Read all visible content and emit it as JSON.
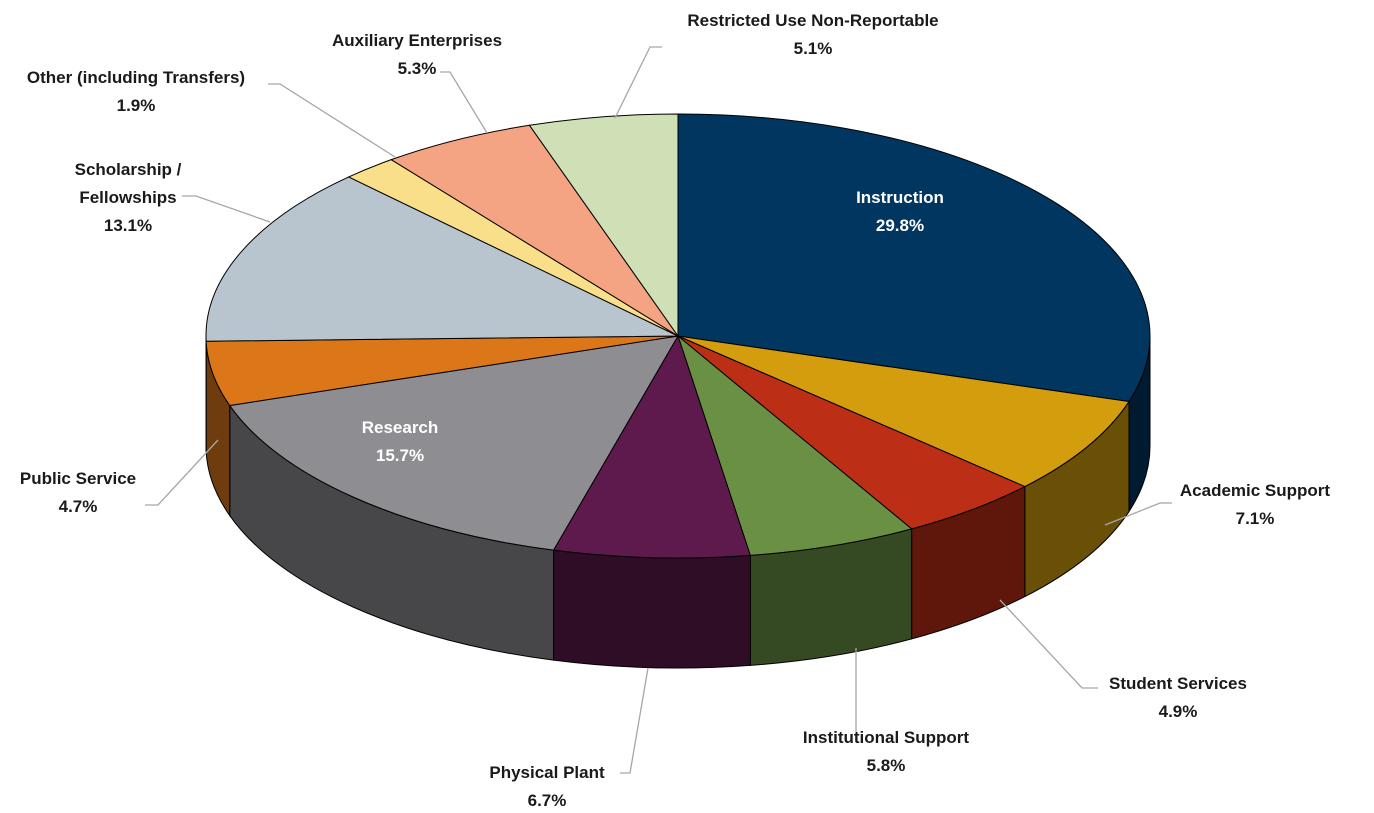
{
  "chart_data": {
    "type": "pie",
    "categories": [
      "Instruction",
      "Academic Support",
      "Student Services",
      "Institutional Support",
      "Physical Plant",
      "Research",
      "Public Service",
      "Scholarship / Fellowships",
      "Other (including Transfers)",
      "Auxiliary Enterprises",
      "Restricted Use Non-Reportable"
    ],
    "values": [
      29.8,
      7.1,
      4.9,
      5.8,
      6.7,
      15.7,
      4.7,
      13.1,
      1.9,
      5.3,
      5.1
    ],
    "value_labels": [
      "29.8%",
      "7.1%",
      "4.9%",
      "5.8%",
      "6.7%",
      "15.7%",
      "4.7%",
      "13.1%",
      "1.9%",
      "5.3%",
      "5.1%"
    ],
    "colors": [
      "#003660",
      "#d49d0e",
      "#bd2e16",
      "#6a9143",
      "#5e1a4d",
      "#8e8d92",
      "#dc7719",
      "#b8c4ce",
      "#fadf8a",
      "#f4a383",
      "#cfdfb6"
    ]
  }
}
